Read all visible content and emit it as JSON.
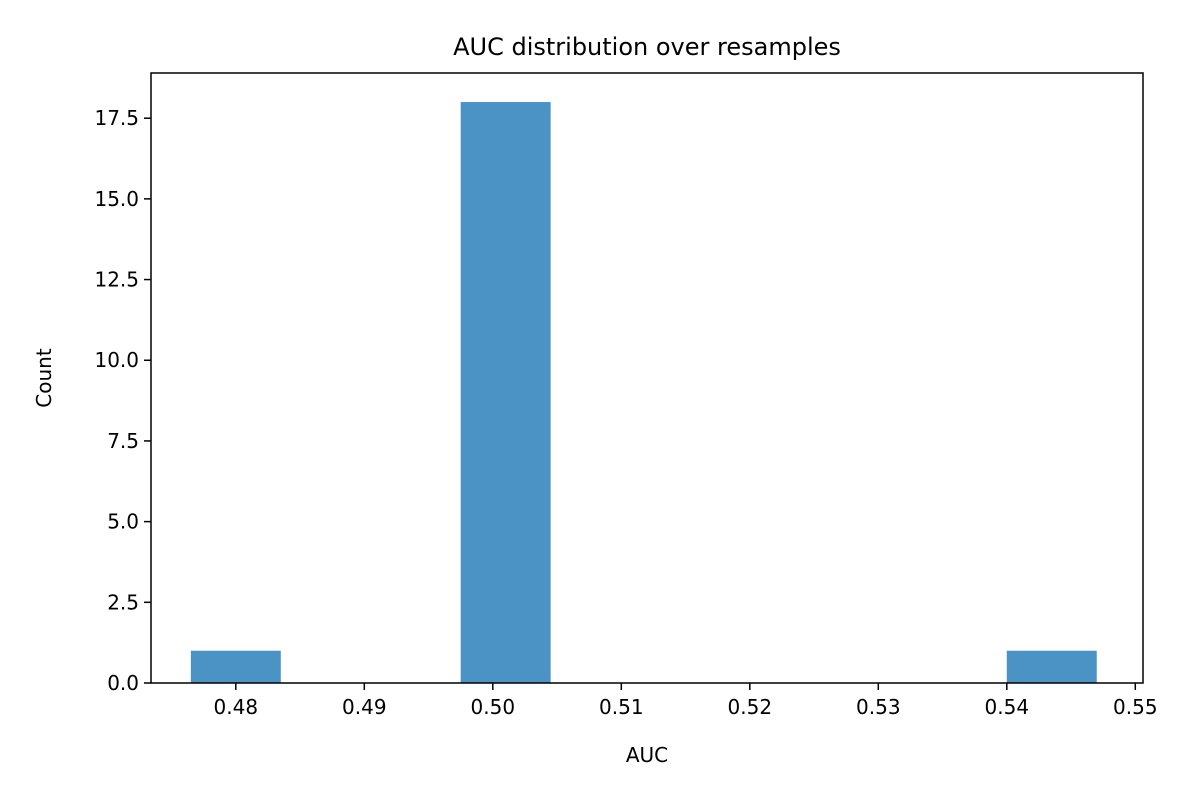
{
  "chart_data": {
    "type": "bar",
    "title": "AUC distribution over resamples",
    "xlabel": "AUC",
    "ylabel": "Count",
    "xlim": [
      0.4734,
      0.5506
    ],
    "ylim": [
      0,
      18.9
    ],
    "xticks": [
      0.48,
      0.49,
      0.5,
      0.51,
      0.52,
      0.53,
      0.54,
      0.55
    ],
    "xtick_labels": [
      "0.48",
      "0.49",
      "0.50",
      "0.51",
      "0.52",
      "0.53",
      "0.54",
      "0.55"
    ],
    "yticks": [
      0.0,
      2.5,
      5.0,
      7.5,
      10.0,
      12.5,
      15.0,
      17.5
    ],
    "ytick_labels": [
      "0.0",
      "2.5",
      "5.0",
      "7.5",
      "10.0",
      "12.5",
      "15.0",
      "17.5"
    ],
    "bins": [
      {
        "x0": 0.4765,
        "x1": 0.4835,
        "count": 1
      },
      {
        "x0": 0.4975,
        "x1": 0.5045,
        "count": 18
      },
      {
        "x0": 0.54,
        "x1": 0.547,
        "count": 1
      }
    ],
    "bar_color": "#4a93c4",
    "grid": false,
    "legend": "none"
  }
}
